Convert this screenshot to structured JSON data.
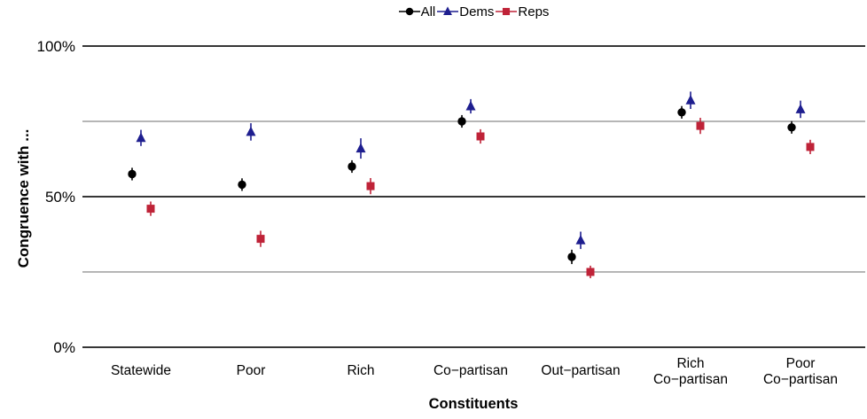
{
  "chart_data": {
    "type": "scatter",
    "title": "",
    "xlabel": "Constituents",
    "ylabel": "Congruence with ...",
    "categories": [
      "Statewide",
      "Poor",
      "Rich",
      "Co−partisan",
      "Out−partisan",
      [
        "Rich",
        "Co−partisan"
      ],
      [
        "Poor",
        "Co−partisan"
      ]
    ],
    "series": [
      {
        "name": "All",
        "marker": "circle",
        "color": "#000000",
        "values": [
          57.5,
          54,
          60,
          75,
          30,
          78,
          73
        ],
        "errors": [
          1.2,
          1.2,
          1.2,
          1.2,
          1.5,
          1.2,
          1.2
        ]
      },
      {
        "name": "Dems",
        "marker": "triangle",
        "color": "#1e1e8f",
        "values": [
          69.5,
          71.5,
          66,
          80,
          35.5,
          82,
          79
        ],
        "errors": [
          1.8,
          2,
          2.5,
          1.5,
          2,
          2,
          2
        ]
      },
      {
        "name": "Reps",
        "marker": "square",
        "color": "#bf2338",
        "values": [
          46,
          36,
          53.5,
          70,
          25,
          73.5,
          66.5
        ],
        "errors": [
          1.5,
          1.8,
          1.8,
          1.5,
          1.2,
          1.8,
          1.5
        ]
      }
    ],
    "yticks": [
      {
        "value": 0,
        "label": "0%"
      },
      {
        "value": 50,
        "label": "50%"
      },
      {
        "value": 100,
        "label": "100%"
      }
    ],
    "gridlines": {
      "major": [
        0,
        50,
        100
      ],
      "minor": [
        25,
        75
      ]
    },
    "ylim": [
      0,
      100
    ],
    "legend_position": "top-center",
    "colors": {
      "all": "#000000",
      "dems": "#1e1e8f",
      "reps": "#bf2338",
      "grid_major": "#1a1a1a",
      "grid_minor": "#8a8a8a"
    }
  }
}
